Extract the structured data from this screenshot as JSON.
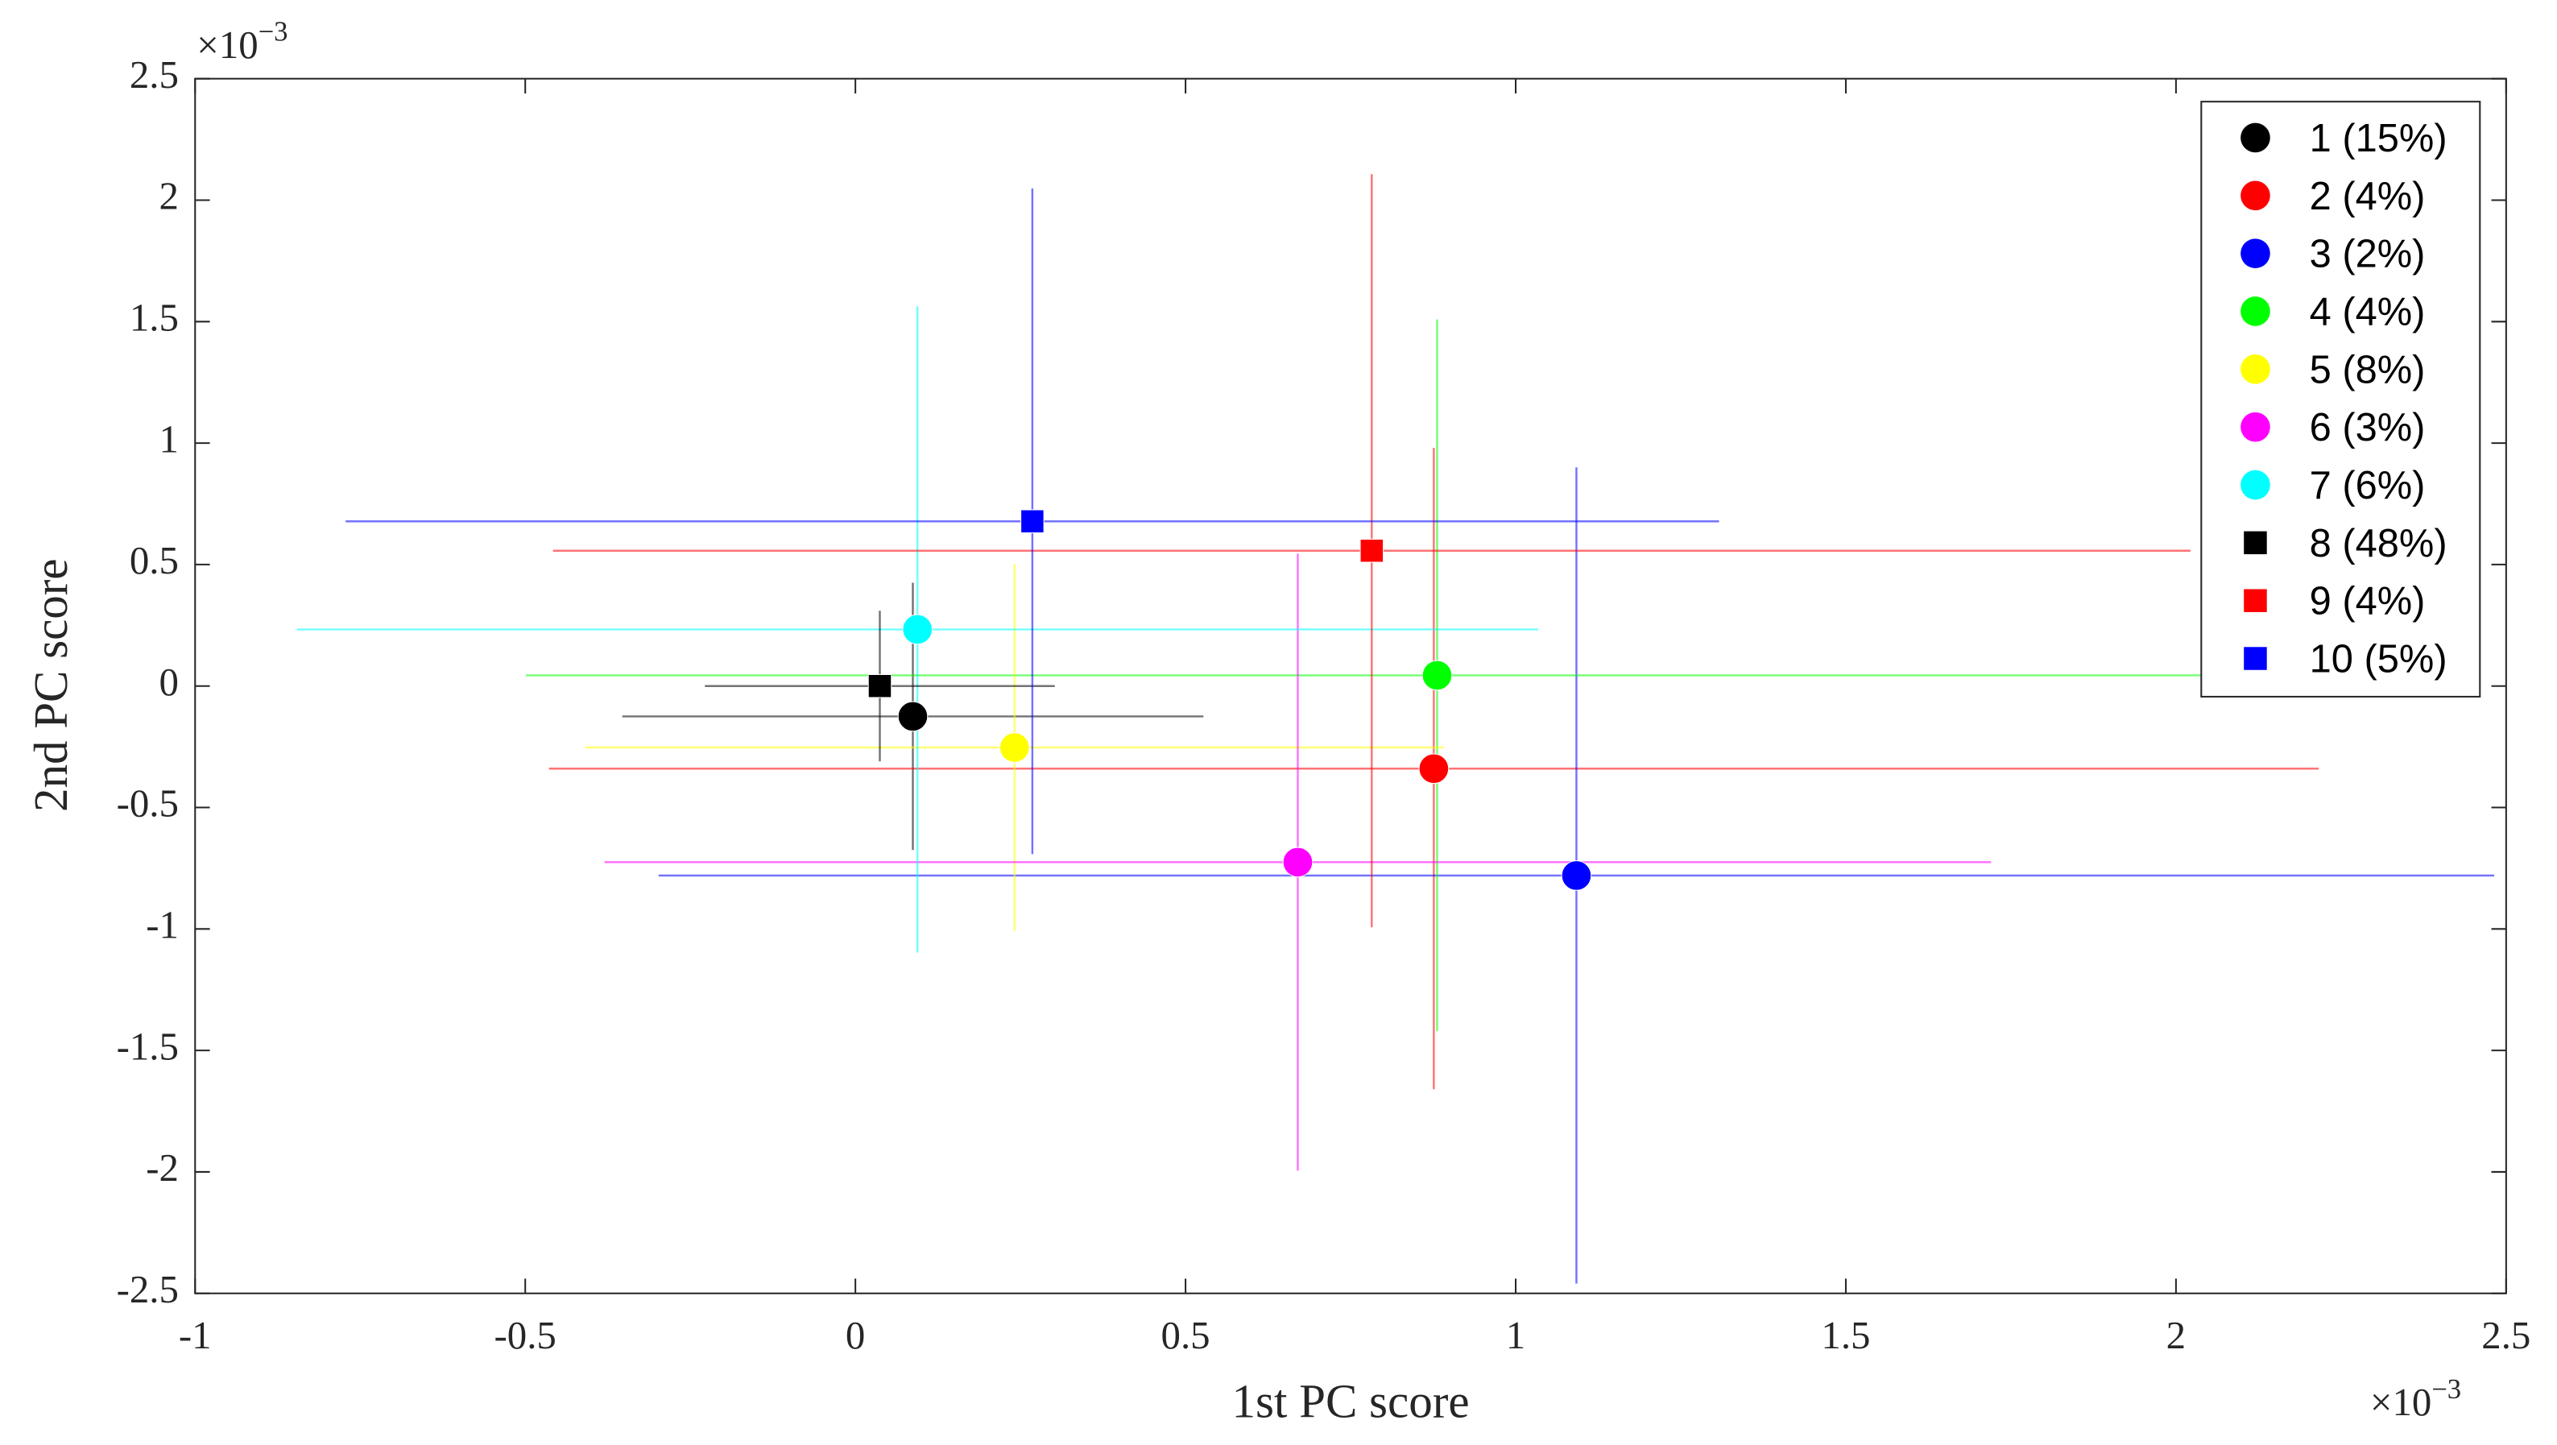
{
  "chart_data": {
    "type": "scatter",
    "xlabel": "1st PC score",
    "ylabel": "2nd PC score",
    "x_multiplier": {
      "base": "×10",
      "exponent": "−3"
    },
    "y_multiplier": {
      "base": "×10",
      "exponent": "−3"
    },
    "xlim": [
      -1,
      2.5
    ],
    "xticks": [
      -1,
      -0.5,
      0,
      0.5,
      1,
      1.5,
      2,
      2.5
    ],
    "ylim": [
      -2.5,
      2.5
    ],
    "yticks": [
      -2.5,
      -2,
      -1.5,
      -1,
      -0.5,
      0,
      0.5,
      1,
      1.5,
      2,
      2.5
    ],
    "legend": "northeast",
    "series": [
      {
        "name": "1 (15%)",
        "color": "#000000",
        "marker": "circle",
        "x": [
          0.087
        ],
        "values": [
          -0.125
        ],
        "xerr": [
          0.44
        ],
        "yerr": [
          0.55
        ]
      },
      {
        "name": "2 (4%)",
        "color": "#ff0000",
        "marker": "circle",
        "x": [
          0.876
        ],
        "values": [
          -0.34
        ],
        "xerr": [
          1.34
        ],
        "yerr": [
          1.32
        ]
      },
      {
        "name": "3 (2%)",
        "color": "#0000ff",
        "marker": "circle",
        "x": [
          1.092
        ],
        "values": [
          -0.78
        ],
        "xerr": [
          1.39
        ],
        "yerr": [
          1.68
        ]
      },
      {
        "name": "4 (4%)",
        "color": "#00ff00",
        "marker": "circle",
        "x": [
          0.881
        ],
        "values": [
          0.044
        ],
        "xerr": [
          1.38
        ],
        "yerr": [
          1.465
        ]
      },
      {
        "name": "5 (8%)",
        "color": "#ffff00",
        "marker": "circle",
        "x": [
          0.241
        ],
        "values": [
          -0.253
        ],
        "xerr": [
          0.65
        ],
        "yerr": [
          0.755
        ]
      },
      {
        "name": "6 (3%)",
        "color": "#ff00ff",
        "marker": "circle",
        "x": [
          0.67
        ],
        "values": [
          -0.725
        ],
        "xerr": [
          1.05
        ],
        "yerr": [
          1.27
        ]
      },
      {
        "name": "7 (6%)",
        "color": "#00ffff",
        "marker": "circle",
        "x": [
          0.094
        ],
        "values": [
          0.233
        ],
        "xerr": [
          0.94
        ],
        "yerr": [
          1.33
        ]
      },
      {
        "name": "8 (48%)",
        "color": "#000000",
        "marker": "square",
        "x": [
          0.037
        ],
        "values": [
          0
        ],
        "xerr": [
          0.265
        ],
        "yerr": [
          0.31
        ]
      },
      {
        "name": "9 (4%)",
        "color": "#ff0000",
        "marker": "square",
        "x": [
          0.782
        ],
        "values": [
          0.557
        ],
        "xerr": [
          1.24
        ],
        "yerr": [
          1.55
        ]
      },
      {
        "name": "10 (5%)",
        "color": "#0000ff",
        "marker": "square",
        "x": [
          0.268
        ],
        "values": [
          0.678
        ],
        "xerr": [
          1.04
        ],
        "yerr": [
          1.37
        ]
      }
    ]
  }
}
